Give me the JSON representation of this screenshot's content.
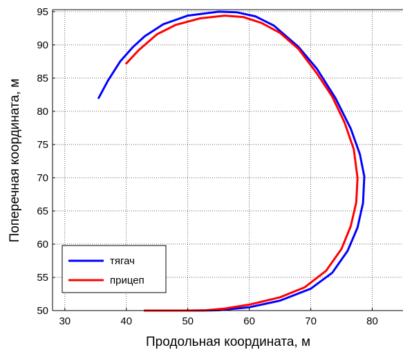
{
  "chart_data": {
    "type": "line",
    "title": "",
    "xlabel": "Продольная координата, м",
    "ylabel": "Поперечная координата, м",
    "xlim": [
      28,
      85
    ],
    "ylim": [
      50,
      95.3
    ],
    "xticks": [
      30,
      40,
      50,
      60,
      70,
      80
    ],
    "yticks": [
      50,
      55,
      60,
      65,
      70,
      75,
      80,
      85,
      90,
      95
    ],
    "grid": true,
    "legend": "bottom-left",
    "series": [
      {
        "name": "тягач",
        "color": "#0000ff",
        "points": [
          [
            35.5,
            82
          ],
          [
            37,
            84.6
          ],
          [
            39,
            87.5
          ],
          [
            41,
            89.6
          ],
          [
            43,
            91.3
          ],
          [
            46,
            93.1
          ],
          [
            50,
            94.4
          ],
          [
            55,
            95.0
          ],
          [
            58,
            94.9
          ],
          [
            61,
            94.3
          ],
          [
            64,
            92.9
          ],
          [
            68,
            89.7
          ],
          [
            71,
            86.4
          ],
          [
            74,
            82.0
          ],
          [
            76.5,
            77.4
          ],
          [
            78,
            73.5
          ],
          [
            78.7,
            70.2
          ],
          [
            78.5,
            66.2
          ],
          [
            77.6,
            62.5
          ],
          [
            76,
            59.0
          ],
          [
            73.5,
            55.7
          ],
          [
            70,
            53.3
          ],
          [
            65,
            51.5
          ],
          [
            60,
            50.5
          ],
          [
            55,
            50.05
          ],
          [
            52,
            50.0
          ],
          [
            43,
            50.0
          ]
        ]
      },
      {
        "name": "прицеп",
        "color": "#ff0000",
        "points": [
          [
            40,
            87.2
          ],
          [
            42,
            89.2
          ],
          [
            45,
            91.6
          ],
          [
            48,
            93.0
          ],
          [
            52,
            94.0
          ],
          [
            56,
            94.4
          ],
          [
            59,
            94.2
          ],
          [
            62,
            93.3
          ],
          [
            65,
            91.8
          ],
          [
            68,
            89.4
          ],
          [
            71,
            85.7
          ],
          [
            73.5,
            82.2
          ],
          [
            75.5,
            78.3
          ],
          [
            77,
            74.3
          ],
          [
            77.6,
            70.0
          ],
          [
            77.4,
            66.3
          ],
          [
            76.5,
            62.7
          ],
          [
            75,
            59.3
          ],
          [
            72.5,
            56.0
          ],
          [
            69,
            53.5
          ],
          [
            65,
            52.0
          ],
          [
            60,
            50.9
          ],
          [
            56,
            50.3
          ],
          [
            53,
            50.05
          ],
          [
            50,
            50.0
          ],
          [
            43,
            50.0
          ]
        ]
      }
    ]
  }
}
